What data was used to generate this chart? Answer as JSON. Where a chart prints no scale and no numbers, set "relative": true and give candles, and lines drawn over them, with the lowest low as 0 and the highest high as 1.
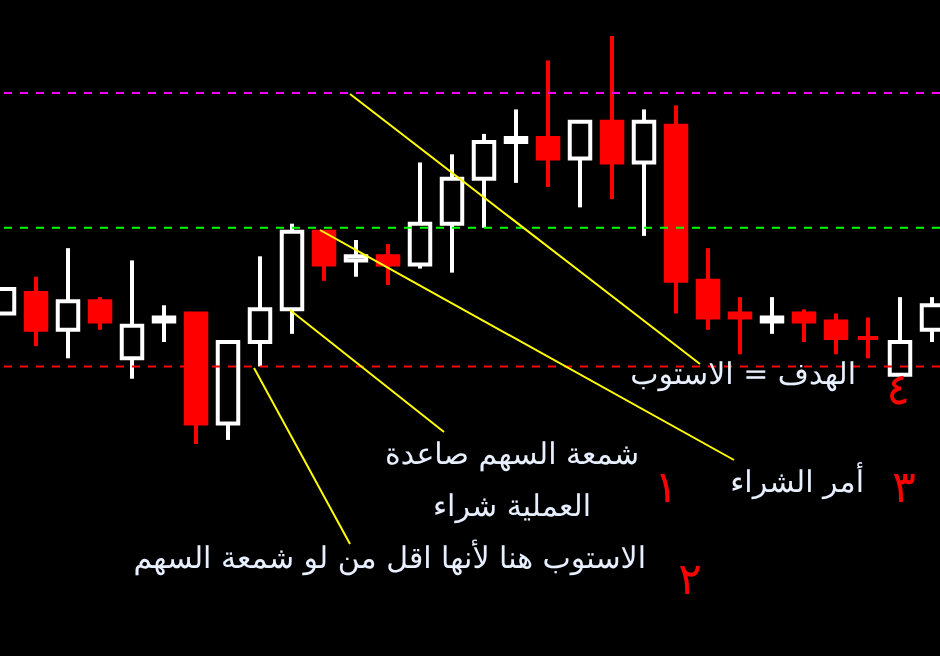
{
  "chart_data": {
    "type": "candlestick",
    "relative": true,
    "categories": [
      null,
      null,
      null,
      null,
      null,
      null,
      null,
      null,
      null,
      null,
      null,
      null,
      null,
      null,
      null,
      null,
      null,
      null,
      null,
      null,
      null,
      null,
      null,
      null,
      null,
      null,
      null,
      null,
      null,
      null
    ],
    "ohlc": [
      [
        0.32,
        0.38,
        0.32,
        0.38
      ],
      [
        0.37,
        0.41,
        0.24,
        0.28
      ],
      [
        0.28,
        0.48,
        0.21,
        0.35
      ],
      [
        0.35,
        0.36,
        0.28,
        0.3
      ],
      [
        0.21,
        0.45,
        0.16,
        0.29
      ],
      [
        0.3,
        0.34,
        0.25,
        0.31
      ],
      [
        0.32,
        0.32,
        0.0,
        0.05
      ],
      [
        0.05,
        0.25,
        0.01,
        0.25
      ],
      [
        0.25,
        0.46,
        0.19,
        0.33
      ],
      [
        0.33,
        0.54,
        0.27,
        0.52
      ],
      [
        0.52,
        0.52,
        0.4,
        0.44
      ],
      [
        0.45,
        0.5,
        0.41,
        0.46
      ],
      [
        0.46,
        0.49,
        0.39,
        0.44
      ],
      [
        0.44,
        0.69,
        0.43,
        0.54
      ],
      [
        0.54,
        0.71,
        0.42,
        0.65
      ],
      [
        0.65,
        0.76,
        0.53,
        0.74
      ],
      [
        0.74,
        0.82,
        0.64,
        0.75
      ],
      [
        0.75,
        0.94,
        0.63,
        0.7
      ],
      [
        0.7,
        0.79,
        0.58,
        0.79
      ],
      [
        0.79,
        1.0,
        0.6,
        0.69
      ],
      [
        0.69,
        0.82,
        0.51,
        0.79
      ],
      [
        0.78,
        0.83,
        0.32,
        0.4
      ],
      [
        0.4,
        0.48,
        0.28,
        0.31
      ],
      [
        0.32,
        0.36,
        0.22,
        0.31
      ],
      [
        0.3,
        0.36,
        0.27,
        0.31
      ],
      [
        0.32,
        0.33,
        0.25,
        0.3
      ],
      [
        0.3,
        0.32,
        0.22,
        0.26
      ],
      [
        0.26,
        0.31,
        0.21,
        0.26
      ],
      [
        0.17,
        0.36,
        0.17,
        0.25
      ],
      [
        0.28,
        0.36,
        0.25,
        0.34
      ]
    ],
    "colors": [
      "#ffffff",
      "#ff0000",
      "#ffffff",
      "#ff0000",
      "#ffffff",
      "#ffffff",
      "#ff0000",
      "#ffffff",
      "#ffffff",
      "#ffffff",
      "#ff0000",
      "#ffffff",
      "#ff0000",
      "#ffffff",
      "#ffffff",
      "#ffffff",
      "#ffffff",
      "#ff0000",
      "#ffffff",
      "#ff0000",
      "#ffffff",
      "#ff0000",
      "#ff0000",
      "#ff0000",
      "#ffffff",
      "#ff0000",
      "#ff0000",
      "#ff0000",
      "#ffffff",
      "#ffffff"
    ],
    "ref_lines": [
      {
        "axis": "y",
        "value": 0.86,
        "color": "#ff00ff",
        "line_style": "dashed"
      },
      {
        "axis": "y",
        "value": 0.53,
        "color": "#00ff00",
        "line_style": "dashed"
      },
      {
        "axis": "y",
        "value": 0.19,
        "color": "#ff0000",
        "line_style": "dashed"
      }
    ],
    "annotations": [
      "الهدف = الاستوب",
      "أمر الشراء",
      "شمعة السهم صاعدة",
      "العملية شراء",
      "الاستوب هنا لأنها اقل من لو شمعة السهم",
      "١",
      "٢",
      "٣",
      "٤"
    ]
  }
}
